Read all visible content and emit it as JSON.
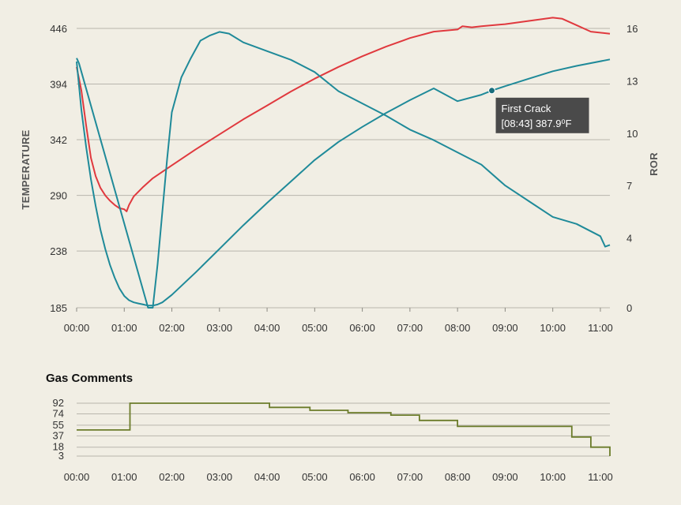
{
  "chart_data": [
    {
      "type": "line",
      "y_axis_left": {
        "label": "TEMPERATURE",
        "ticks": [
          185,
          238,
          290,
          342,
          394,
          446
        ],
        "range": [
          185,
          446
        ]
      },
      "y_axis_right": {
        "label": "ROR",
        "ticks": [
          0,
          4,
          7,
          10,
          13,
          16
        ],
        "range": [
          0,
          16
        ]
      },
      "x_axis": {
        "unit": "minutes",
        "range": [
          0,
          11.2
        ],
        "ticks": [
          "00:00",
          "01:00",
          "02:00",
          "03:00",
          "04:00",
          "05:00",
          "06:00",
          "07:00",
          "08:00",
          "09:00",
          "10:00",
          "11:00"
        ]
      },
      "grid": true,
      "series": [
        {
          "axis": "left",
          "color": "#e0393e",
          "x": [
            0,
            0.1,
            0.2,
            0.3,
            0.4,
            0.5,
            0.6,
            0.7,
            0.8,
            0.9,
            1.0,
            1.05,
            1.1,
            1.2,
            1.4,
            1.6,
            1.8,
            2.0,
            2.5,
            3.0,
            3.5,
            4.0,
            4.5,
            5.0,
            5.5,
            6.0,
            6.5,
            7.0,
            7.5,
            8.0,
            8.1,
            8.3,
            8.5,
            9.0,
            9.5,
            10.0,
            10.2,
            10.5,
            10.8,
            11.2
          ],
          "y": [
            410,
            388,
            355,
            325,
            308,
            297,
            290,
            285,
            281,
            278,
            277,
            275,
            281,
            289,
            298,
            306,
            312,
            318,
            333,
            347,
            361,
            374,
            387,
            399,
            410,
            420,
            429,
            437,
            443,
            445,
            448,
            447,
            448,
            450,
            453,
            456,
            455,
            449,
            443,
            441
          ]
        },
        {
          "axis": "left",
          "color": "#1f8a99",
          "x": [
            0,
            0.1,
            0.2,
            0.3,
            0.4,
            0.5,
            0.6,
            0.7,
            0.8,
            0.9,
            1.0,
            1.1,
            1.2,
            1.3,
            1.4,
            1.5,
            1.6,
            1.7,
            1.8,
            2.0,
            2.5,
            3.0,
            3.5,
            4.0,
            4.5,
            5.0,
            5.5,
            6.0,
            6.5,
            7.0,
            7.5,
            8.0,
            8.5,
            8.72,
            9.0,
            9.5,
            10.0,
            10.5,
            11.2
          ],
          "y": [
            415,
            370,
            335,
            305,
            280,
            258,
            240,
            225,
            213,
            203,
            196,
            192,
            190,
            189,
            188,
            187,
            187,
            188,
            190,
            197,
            218,
            240,
            262,
            283,
            303,
            323,
            340,
            354,
            367,
            379,
            390,
            378,
            384,
            387.9,
            392,
            399,
            406,
            411,
            417
          ]
        },
        {
          "axis": "right",
          "color": "#1f8a99",
          "x": [
            0,
            0.05,
            1.5,
            1.6,
            1.7,
            1.8,
            1.9,
            2.0,
            2.2,
            2.4,
            2.6,
            2.8,
            3.0,
            3.2,
            3.5,
            4.0,
            4.5,
            5.0,
            5.5,
            6.0,
            6.5,
            7.0,
            7.5,
            8.0,
            8.5,
            9.0,
            9.5,
            10.0,
            10.5,
            11.0,
            11.1,
            11.2
          ],
          "y": [
            14.3,
            14.0,
            0,
            0,
            2.5,
            5.5,
            8.5,
            11.2,
            13.2,
            14.3,
            15.3,
            15.6,
            15.8,
            15.7,
            15.2,
            14.7,
            14.2,
            13.5,
            12.4,
            11.7,
            11.0,
            10.2,
            9.6,
            8.9,
            8.2,
            7.0,
            6.1,
            5.2,
            4.8,
            4.1,
            3.5,
            3.6
          ]
        }
      ],
      "annotation": {
        "title": "First Crack",
        "time": "[08:43]",
        "value": "387.9⁰F",
        "x": 8.72,
        "y": 387.9
      }
    },
    {
      "type": "line",
      "title": "Gas Comments",
      "y_axis": {
        "ticks": [
          3,
          18,
          37,
          55,
          74,
          92
        ],
        "range": [
          3,
          92
        ]
      },
      "x_axis": {
        "unit": "minutes",
        "range": [
          0,
          11.2
        ],
        "ticks": [
          "00:00",
          "01:00",
          "02:00",
          "03:00",
          "04:00",
          "05:00",
          "06:00",
          "07:00",
          "08:00",
          "09:00",
          "10:00",
          "11:00"
        ]
      },
      "grid": true,
      "series": [
        {
          "color": "#6b7c2a",
          "step": true,
          "x": [
            0,
            1.12,
            4.05,
            4.9,
            5.7,
            6.6,
            7.2,
            8.0,
            10.05,
            10.4,
            10.8,
            11.2
          ],
          "y": [
            47,
            92,
            85,
            80,
            76,
            72,
            63,
            53,
            53,
            35,
            18,
            3
          ]
        }
      ]
    }
  ]
}
